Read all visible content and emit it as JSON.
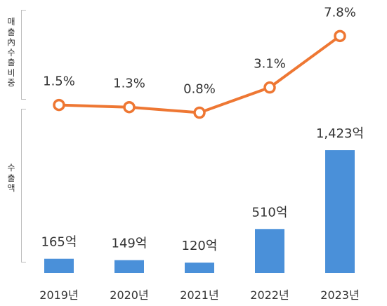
{
  "chart_data": [
    {
      "type": "line",
      "ylabel": "매출內수출비중",
      "categories": [
        "2019년",
        "2020년",
        "2021년",
        "2022년",
        "2023년"
      ],
      "values": [
        1.5,
        1.3,
        0.8,
        3.1,
        7.8
      ],
      "data_labels": [
        "1.5%",
        "1.3%",
        "0.8%",
        "3.1%",
        "7.8%"
      ],
      "color": "#ee7733",
      "grid": false
    },
    {
      "type": "bar",
      "ylabel": "수출액",
      "categories": [
        "2019년",
        "2020년",
        "2021년",
        "2022년",
        "2023년"
      ],
      "values": [
        165,
        149,
        120,
        510,
        1423
      ],
      "data_labels": [
        "165억",
        "149억",
        "120억",
        "510억",
        "1,423억"
      ],
      "color": "#4a90d9",
      "grid": false
    }
  ]
}
